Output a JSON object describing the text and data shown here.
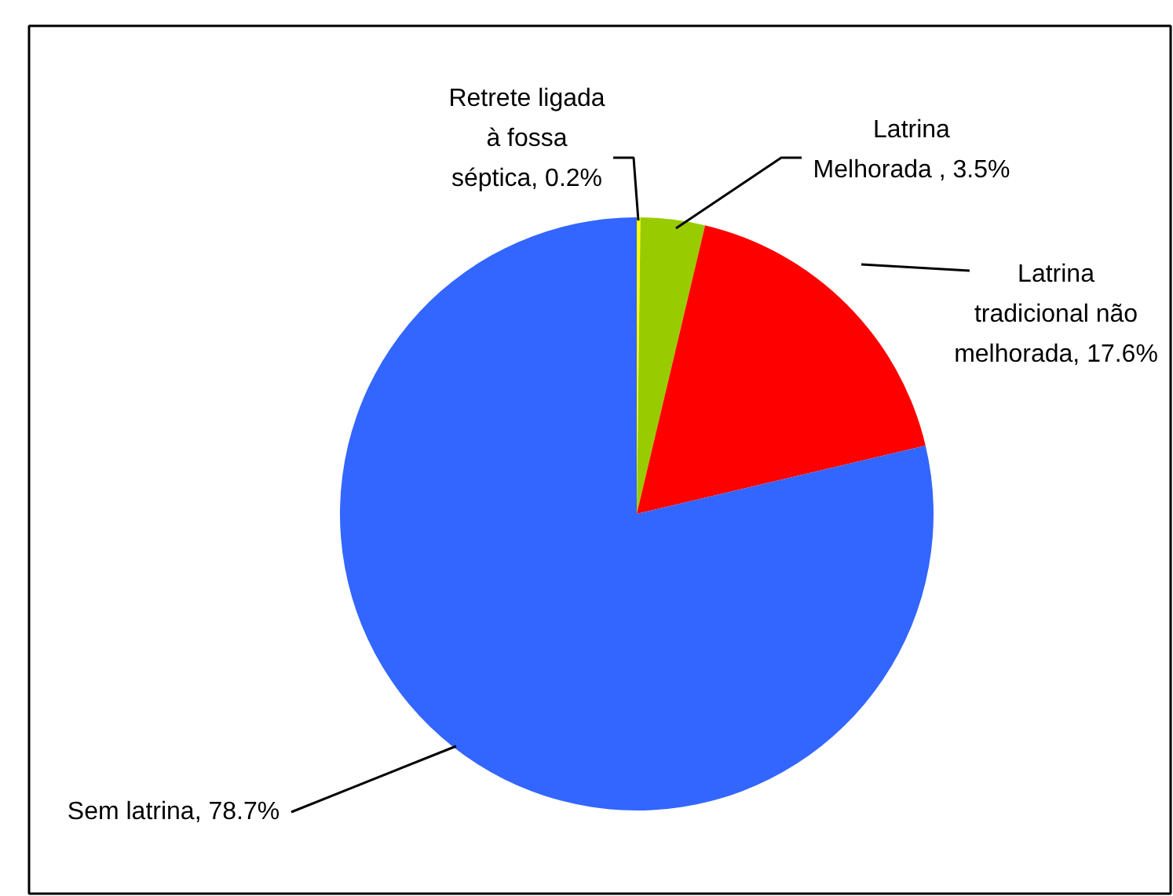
{
  "chart_data": {
    "type": "pie",
    "categories": [
      "Retrete ligada à fossa séptica",
      "Latrina Melhorada ",
      "Latrina tradicional não melhorada",
      "Sem latrina"
    ],
    "values": [
      0.2,
      3.5,
      17.6,
      78.7
    ],
    "value_labels": [
      "0.2%",
      "3.5%",
      "17.6%",
      "78.7%"
    ],
    "colors": [
      "#ffff00",
      "#99cc00",
      "#ff0000",
      "#3366ff"
    ]
  }
}
